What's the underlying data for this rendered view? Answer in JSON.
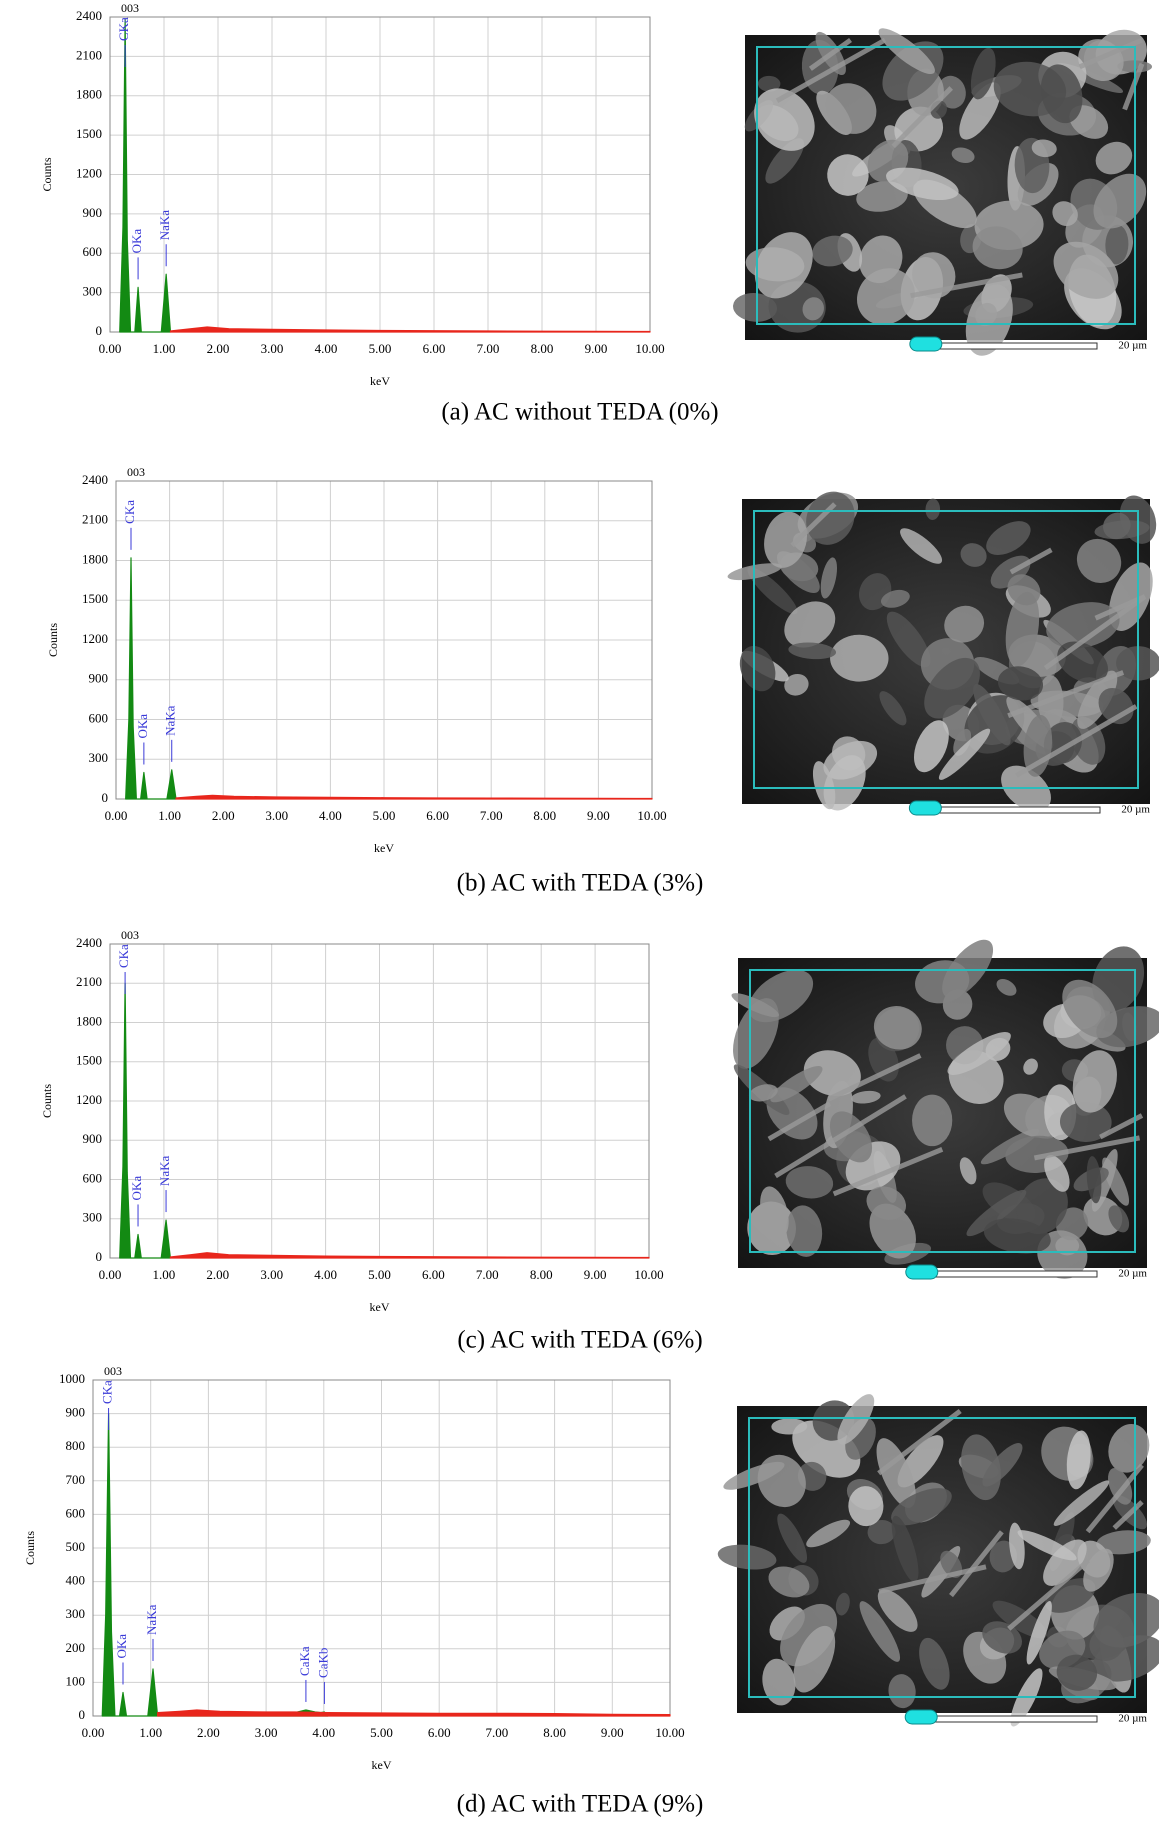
{
  "chart_data": [
    {
      "type": "area",
      "title": "003",
      "caption": "(a) AC without TEDA (0%)",
      "ylabel": "Counts",
      "xlabel": "keV",
      "scale_bar": "20 µm",
      "xlim": [
        0,
        10
      ],
      "ylim": [
        0,
        2400
      ],
      "xticks": [
        {
          "value": 0,
          "label": "0.00"
        },
        {
          "value": 1,
          "label": "1.00"
        },
        {
          "value": 2,
          "label": "2.00"
        },
        {
          "value": 3,
          "label": "3.00"
        },
        {
          "value": 4,
          "label": "4.00"
        },
        {
          "value": 5,
          "label": "5.00"
        },
        {
          "value": 6,
          "label": "6.00"
        },
        {
          "value": 7,
          "label": "7.00"
        },
        {
          "value": 8,
          "label": "8.00"
        },
        {
          "value": 9,
          "label": "9.00"
        },
        {
          "value": 10,
          "label": "10.00"
        }
      ],
      "yticks": [
        0,
        300,
        600,
        900,
        1200,
        1500,
        1800,
        2100,
        2400
      ],
      "grid": true,
      "series": [
        {
          "color": "#138a13",
          "x": [
            0.18,
            0.24,
            0.28,
            0.32,
            0.38,
            0.46,
            0.52,
            0.58,
            0.95,
            1.04,
            1.12
          ],
          "values": [
            0,
            800,
            2380,
            700,
            0,
            0,
            340,
            0,
            0,
            440,
            0
          ]
        },
        {
          "color": "#e8261c",
          "x": [
            1.12,
            1.5,
            1.8,
            2.2,
            3,
            4,
            5,
            6,
            7,
            8,
            9,
            10
          ],
          "values": [
            8,
            25,
            38,
            25,
            20,
            15,
            12,
            10,
            8,
            6,
            5,
            4
          ]
        }
      ],
      "peaks": [
        {
          "label": "CKa",
          "x": 0.28
        },
        {
          "label": "OKa",
          "x": 0.52
        },
        {
          "label": "NaKa",
          "x": 1.04
        }
      ]
    },
    {
      "type": "area",
      "title": "003",
      "caption": "(b) AC with TEDA (3%)",
      "ylabel": "Counts",
      "xlabel": "keV",
      "scale_bar": "20 µm",
      "xlim": [
        0,
        10
      ],
      "ylim": [
        0,
        2400
      ],
      "xticks": [
        {
          "value": 0,
          "label": "0.00"
        },
        {
          "value": 1,
          "label": "1.00"
        },
        {
          "value": 2,
          "label": "2.00"
        },
        {
          "value": 3,
          "label": "3.00"
        },
        {
          "value": 4,
          "label": "4.00"
        },
        {
          "value": 5,
          "label": "5.00"
        },
        {
          "value": 6,
          "label": "6.00"
        },
        {
          "value": 7,
          "label": "7.00"
        },
        {
          "value": 8,
          "label": "8.00"
        },
        {
          "value": 9,
          "label": "9.00"
        },
        {
          "value": 10,
          "label": "10.00"
        }
      ],
      "yticks": [
        0,
        300,
        600,
        900,
        1200,
        1500,
        1800,
        2100,
        2400
      ],
      "grid": true,
      "series": [
        {
          "color": "#138a13",
          "x": [
            0.18,
            0.24,
            0.28,
            0.32,
            0.38,
            0.46,
            0.52,
            0.58,
            0.95,
            1.04,
            1.12
          ],
          "values": [
            0,
            600,
            1820,
            550,
            0,
            0,
            200,
            0,
            0,
            220,
            0
          ]
        },
        {
          "color": "#e8261c",
          "x": [
            1.12,
            1.5,
            1.8,
            2.2,
            3,
            4,
            5,
            6,
            7,
            8,
            9,
            10
          ],
          "values": [
            8,
            20,
            28,
            20,
            15,
            12,
            10,
            8,
            7,
            6,
            5,
            4
          ]
        }
      ],
      "peaks": [
        {
          "label": "CKa",
          "x": 0.28
        },
        {
          "label": "OKa",
          "x": 0.52
        },
        {
          "label": "NaKa",
          "x": 1.04
        }
      ]
    },
    {
      "type": "area",
      "title": "003",
      "caption": "(c) AC with TEDA (6%)",
      "ylabel": "Counts",
      "xlabel": "keV",
      "scale_bar": "20 µm",
      "xlim": [
        0,
        10
      ],
      "ylim": [
        0,
        2400
      ],
      "xticks": [
        {
          "value": 0,
          "label": "0.00"
        },
        {
          "value": 1,
          "label": "1.00"
        },
        {
          "value": 2,
          "label": "2.00"
        },
        {
          "value": 3,
          "label": "3.00"
        },
        {
          "value": 4,
          "label": "4.00"
        },
        {
          "value": 5,
          "label": "5.00"
        },
        {
          "value": 6,
          "label": "6.00"
        },
        {
          "value": 7,
          "label": "7.00"
        },
        {
          "value": 8,
          "label": "8.00"
        },
        {
          "value": 9,
          "label": "9.00"
        },
        {
          "value": 10,
          "label": "10.00"
        }
      ],
      "yticks": [
        0,
        300,
        600,
        900,
        1200,
        1500,
        1800,
        2100,
        2400
      ],
      "grid": true,
      "series": [
        {
          "color": "#138a13",
          "x": [
            0.18,
            0.24,
            0.28,
            0.32,
            0.38,
            0.46,
            0.52,
            0.58,
            0.95,
            1.04,
            1.12
          ],
          "values": [
            0,
            700,
            2100,
            650,
            0,
            0,
            180,
            0,
            0,
            290,
            0
          ]
        },
        {
          "color": "#e8261c",
          "x": [
            1.12,
            1.5,
            1.8,
            2.2,
            3,
            4,
            5,
            6,
            7,
            8,
            9,
            10
          ],
          "values": [
            8,
            25,
            40,
            25,
            20,
            15,
            12,
            10,
            8,
            6,
            5,
            4
          ]
        }
      ],
      "peaks": [
        {
          "label": "CKa",
          "x": 0.28
        },
        {
          "label": "OKa",
          "x": 0.52
        },
        {
          "label": "NaKa",
          "x": 1.04
        }
      ]
    },
    {
      "type": "area",
      "title": "003",
      "caption": "(d) AC with TEDA (9%)",
      "ylabel": "Counts",
      "xlabel": "keV",
      "scale_bar": "20 µm",
      "xlim": [
        0,
        10
      ],
      "ylim": [
        0,
        1000
      ],
      "xticks": [
        {
          "value": 0,
          "label": "0.00"
        },
        {
          "value": 1,
          "label": "1.00"
        },
        {
          "value": 2,
          "label": "2.00"
        },
        {
          "value": 3,
          "label": "3.00"
        },
        {
          "value": 4,
          "label": "4.00"
        },
        {
          "value": 5,
          "label": "5.00"
        },
        {
          "value": 6,
          "label": "6.00"
        },
        {
          "value": 7,
          "label": "7.00"
        },
        {
          "value": 8,
          "label": "8.00"
        },
        {
          "value": 9,
          "label": "9.00"
        },
        {
          "value": 10,
          "label": "10.00"
        }
      ],
      "yticks": [
        0,
        100,
        200,
        300,
        400,
        500,
        600,
        700,
        800,
        900,
        1000
      ],
      "grid": true,
      "series": [
        {
          "color": "#138a13",
          "x": [
            0.16,
            0.22,
            0.27,
            0.32,
            0.38,
            0.46,
            0.52,
            0.58,
            0.95,
            1.04,
            1.12,
            3.5,
            3.69,
            3.85,
            3.95,
            4.01,
            4.07
          ],
          "values": [
            0,
            300,
            900,
            250,
            0,
            0,
            70,
            0,
            0,
            140,
            0,
            10,
            18,
            12,
            10,
            12,
            0
          ]
        },
        {
          "color": "#e8261c",
          "x": [
            1.12,
            1.5,
            1.8,
            2.2,
            3,
            3.5,
            4.07,
            5,
            6,
            7,
            8,
            9,
            10
          ],
          "values": [
            10,
            14,
            18,
            14,
            12,
            12,
            10,
            9,
            8,
            8,
            7,
            5,
            4
          ]
        }
      ],
      "peaks": [
        {
          "label": "CKa",
          "x": 0.27
        },
        {
          "label": "OKa",
          "x": 0.52
        },
        {
          "label": "NaKa",
          "x": 1.04
        },
        {
          "label": "CaKa",
          "x": 3.69
        },
        {
          "label": "CaKb",
          "x": 4.01
        }
      ]
    }
  ]
}
